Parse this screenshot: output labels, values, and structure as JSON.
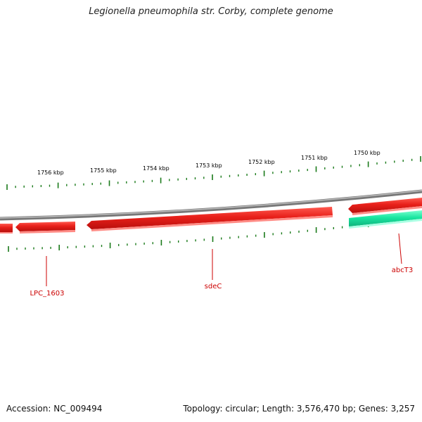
{
  "title": "Legionella pneumophila str. Corby, complete genome",
  "footer": {
    "accession": "Accession: NC_009494",
    "topology": "Topology: circular; Length: 3,576,470 bp; Genes: 3,257"
  },
  "ticks": [
    {
      "label": "1756 kbp"
    },
    {
      "label": "1755 kbp"
    },
    {
      "label": "1754 kbp"
    },
    {
      "label": "1753 kbp"
    },
    {
      "label": "1752 kbp"
    },
    {
      "label": "1751 kbp"
    },
    {
      "label": "1750 kbp"
    }
  ],
  "genes": [
    {
      "name": "LPC_1603",
      "strand": "reverse",
      "color": "#e8201a"
    },
    {
      "name": "sdeC",
      "strand": "reverse",
      "color": "#e8201a"
    },
    {
      "name": "abcT3",
      "strand": "forward",
      "color": "#19e6a0"
    }
  ],
  "colors": {
    "backbone": "#8a8a8a",
    "tick": "#1a7a1a",
    "gene_reverse": "#e8201a",
    "gene_forward": "#19e6a0",
    "gene_label": "#cc0000"
  }
}
